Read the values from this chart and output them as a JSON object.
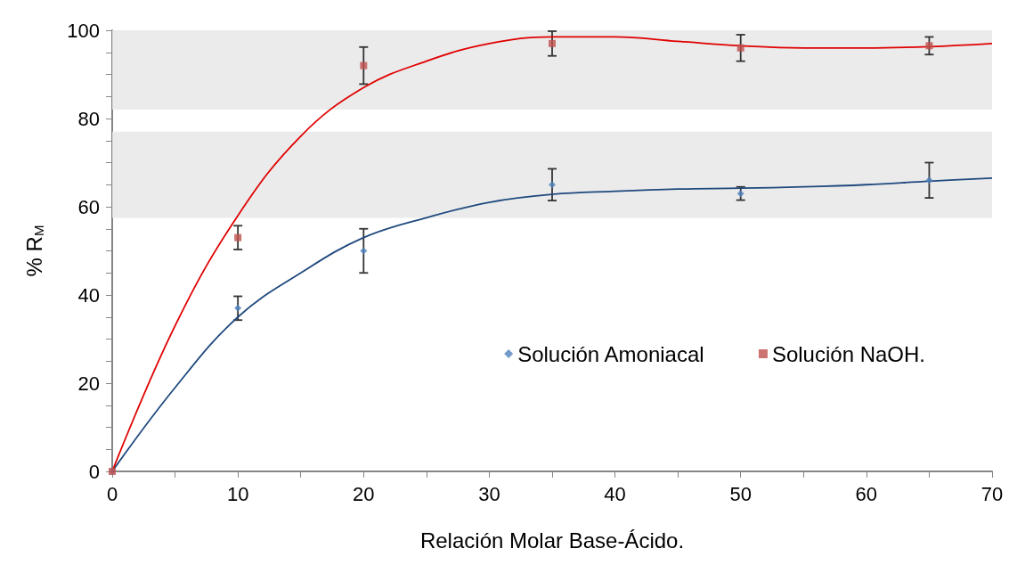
{
  "chart_data": {
    "type": "scatter",
    "xlabel": "Relación Molar Base-Ácido.",
    "ylabel": "% R$_{M}$",
    "xlim": [
      0,
      70
    ],
    "xticks": [
      0,
      {
        "value": 5,
        "label": null
      },
      10,
      {
        "value": 15,
        "label": null
      },
      20,
      {
        "value": 25,
        "label": null
      },
      30,
      {
        "value": 35,
        "label": null
      },
      40,
      {
        "value": 45,
        "label": null
      },
      50,
      {
        "value": 55,
        "label": null
      },
      60,
      {
        "value": 65,
        "label": null
      },
      70
    ],
    "ylim": [
      0,
      100
    ],
    "yticks": [
      0,
      {
        "value": 5,
        "label": null
      },
      {
        "value": 10,
        "label": null
      },
      {
        "value": 15,
        "label": null
      },
      20,
      {
        "value": 25,
        "label": null
      },
      {
        "value": 30,
        "label": null
      },
      {
        "value": 35,
        "label": null
      },
      40,
      {
        "value": 45,
        "label": null
      },
      {
        "value": 50,
        "label": null
      },
      {
        "value": 55,
        "label": null
      },
      60,
      {
        "value": 65,
        "label": null
      },
      {
        "value": 70,
        "label": null
      },
      {
        "value": 75,
        "label": null
      },
      80,
      {
        "value": 85,
        "label": null
      },
      {
        "value": 90,
        "label": null
      },
      {
        "value": 95,
        "label": null
      },
      100
    ],
    "grid": false,
    "legend": "right",
    "bands": [
      {
        "axis": "y",
        "from": 82,
        "to": 102,
        "color": "#e8e8e8"
      },
      {
        "axis": "y",
        "from": 57.5,
        "to": 77,
        "color": "#e8e8e8"
      }
    ],
    "series": [
      {
        "name": "Solución Amoniacal",
        "marker": "diamond",
        "color": "#4f81bd",
        "x": [
          0,
          10,
          20,
          35,
          50,
          65
        ],
        "values": [
          0,
          37,
          50,
          65,
          63,
          66
        ],
        "errors": [
          null,
          2.7,
          5,
          3.6,
          1.5,
          4
        ]
      },
      {
        "name": "Solución NaOH.",
        "marker": "square",
        "color": "#c0504d",
        "x": [
          0,
          10,
          20,
          35,
          50,
          65
        ],
        "values": [
          0,
          53,
          92,
          97,
          96,
          96.5
        ],
        "errors": [
          null,
          2.7,
          4.2,
          2.8,
          3,
          2
        ]
      },
      {
        "type": "line",
        "marker": "none",
        "color": "#1f497d",
        "x": [
          0,
          5,
          10,
          15,
          20,
          25,
          30,
          35,
          40,
          45,
          50,
          55,
          60,
          65,
          70
        ],
        "values": [
          0,
          19,
          35,
          45,
          53,
          57.5,
          61,
          62.8,
          63.5,
          64,
          64.2,
          64.5,
          65,
          65.8,
          66.5
        ]
      },
      {
        "type": "line",
        "marker": "none",
        "color": "#e00000",
        "x": [
          0,
          5,
          10,
          15,
          20,
          25,
          30,
          35,
          40,
          45,
          50,
          55,
          60,
          65,
          70
        ],
        "values": [
          0,
          33,
          58,
          76,
          87,
          93,
          97,
          98.5,
          98.5,
          97.5,
          96.5,
          96,
          96,
          96.3,
          97
        ]
      }
    ]
  }
}
